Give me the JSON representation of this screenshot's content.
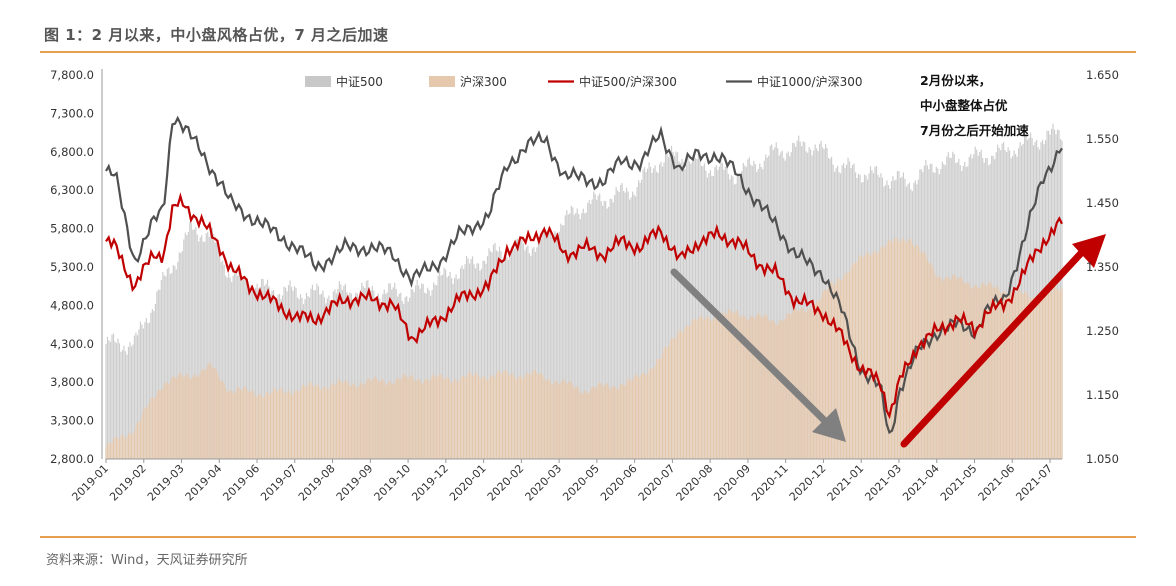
{
  "title": "图 1：2 月以来，中小盘风格占优，7 月之后加速",
  "source": "资料来源：Wind，天风证券研究所",
  "annotation": [
    "2月份以来，",
    "中小盘整体占优",
    "7月份之后开始加速"
  ],
  "colors": {
    "zz500_bar": "#c8c8c8",
    "hs300_bar": "#e6c8ad",
    "ratio500_line": "#c00000",
    "ratio1000_line": "#505050",
    "arrow_down": "#808080",
    "arrow_up": "#c00000",
    "rule": "#e8a050"
  },
  "chart_data": {
    "type": "bar+line",
    "x_ticks": [
      "2019-01",
      "2019-02",
      "2019-03",
      "2019-04",
      "2019-06",
      "2019-07",
      "2019-08",
      "2019-09",
      "2019-10",
      "2019-12",
      "2020-01",
      "2020-02",
      "2020-03",
      "2020-05",
      "2020-06",
      "2020-07",
      "2020-08",
      "2020-09",
      "2020-11",
      "2020-12",
      "2021-01",
      "2021-03",
      "2021-04",
      "2021-05",
      "2021-06",
      "2021-07"
    ],
    "y_left": {
      "min": 2800,
      "max": 7800,
      "ticks": [
        "7,800.0",
        "7,300.0",
        "6,800.0",
        "6,300.0",
        "5,800.0",
        "5,300.0",
        "4,800.0",
        "4,300.0",
        "3,800.0",
        "3,300.0",
        "2,800.0"
      ]
    },
    "y_right": {
      "min": 1.05,
      "max": 1.65,
      "ticks": [
        "1.650",
        "1.550",
        "1.450",
        "1.350",
        "1.250",
        "1.150",
        "1.050"
      ]
    },
    "series": [
      {
        "name": "中证500",
        "type": "bar",
        "axis": "left",
        "keypoints": [
          [
            0,
            4300
          ],
          [
            0.03,
            4300
          ],
          [
            0.06,
            5100
          ],
          [
            0.09,
            5800
          ],
          [
            0.11,
            5700
          ],
          [
            0.13,
            5200
          ],
          [
            0.17,
            5000
          ],
          [
            0.22,
            4950
          ],
          [
            0.27,
            5000
          ],
          [
            0.32,
            4950
          ],
          [
            0.36,
            5200
          ],
          [
            0.41,
            5500
          ],
          [
            0.45,
            5600
          ],
          [
            0.5,
            6100
          ],
          [
            0.55,
            6300
          ],
          [
            0.58,
            6700
          ],
          [
            0.6,
            6750
          ],
          [
            0.63,
            6600
          ],
          [
            0.66,
            6500
          ],
          [
            0.7,
            6800
          ],
          [
            0.74,
            6900
          ],
          [
            0.77,
            6600
          ],
          [
            0.8,
            6500
          ],
          [
            0.84,
            6400
          ],
          [
            0.87,
            6650
          ],
          [
            0.9,
            6700
          ],
          [
            0.94,
            6800
          ],
          [
            0.97,
            6950
          ],
          [
            1,
            7050
          ]
        ]
      },
      {
        "name": "沪深300",
        "type": "bar",
        "axis": "left",
        "keypoints": [
          [
            0,
            2950
          ],
          [
            0.03,
            3200
          ],
          [
            0.06,
            3800
          ],
          [
            0.09,
            3900
          ],
          [
            0.11,
            4000
          ],
          [
            0.13,
            3700
          ],
          [
            0.17,
            3650
          ],
          [
            0.22,
            3750
          ],
          [
            0.27,
            3800
          ],
          [
            0.32,
            3850
          ],
          [
            0.36,
            3850
          ],
          [
            0.41,
            3900
          ],
          [
            0.45,
            3900
          ],
          [
            0.5,
            3700
          ],
          [
            0.55,
            3800
          ],
          [
            0.58,
            4100
          ],
          [
            0.6,
            4500
          ],
          [
            0.63,
            4650
          ],
          [
            0.66,
            4700
          ],
          [
            0.7,
            4600
          ],
          [
            0.74,
            4800
          ],
          [
            0.77,
            5200
          ],
          [
            0.8,
            5500
          ],
          [
            0.84,
            5700
          ],
          [
            0.87,
            5200
          ],
          [
            0.9,
            5100
          ],
          [
            0.94,
            5000
          ],
          [
            0.97,
            4900
          ],
          [
            1,
            5000
          ]
        ]
      },
      {
        "name": "中证500/沪深300",
        "type": "line",
        "axis": "right",
        "keypoints": [
          [
            0,
            1.39
          ],
          [
            0.01,
            1.38
          ],
          [
            0.03,
            1.32
          ],
          [
            0.05,
            1.37
          ],
          [
            0.06,
            1.37
          ],
          [
            0.07,
            1.44
          ],
          [
            0.08,
            1.45
          ],
          [
            0.1,
            1.42
          ],
          [
            0.12,
            1.38
          ],
          [
            0.13,
            1.35
          ],
          [
            0.15,
            1.32
          ],
          [
            0.17,
            1.3
          ],
          [
            0.2,
            1.27
          ],
          [
            0.22,
            1.27
          ],
          [
            0.25,
            1.3
          ],
          [
            0.28,
            1.3
          ],
          [
            0.3,
            1.29
          ],
          [
            0.32,
            1.24
          ],
          [
            0.35,
            1.27
          ],
          [
            0.37,
            1.3
          ],
          [
            0.4,
            1.32
          ],
          [
            0.42,
            1.38
          ],
          [
            0.44,
            1.39
          ],
          [
            0.46,
            1.41
          ],
          [
            0.48,
            1.37
          ],
          [
            0.5,
            1.38
          ],
          [
            0.52,
            1.37
          ],
          [
            0.54,
            1.39
          ],
          [
            0.56,
            1.38
          ],
          [
            0.58,
            1.41
          ],
          [
            0.6,
            1.36
          ],
          [
            0.62,
            1.39
          ],
          [
            0.64,
            1.4
          ],
          [
            0.66,
            1.39
          ],
          [
            0.68,
            1.36
          ],
          [
            0.7,
            1.34
          ],
          [
            0.72,
            1.3
          ],
          [
            0.75,
            1.28
          ],
          [
            0.77,
            1.24
          ],
          [
            0.79,
            1.19
          ],
          [
            0.81,
            1.17
          ],
          [
            0.82,
            1.12
          ],
          [
            0.83,
            1.17
          ],
          [
            0.85,
            1.23
          ],
          [
            0.87,
            1.25
          ],
          [
            0.89,
            1.27
          ],
          [
            0.91,
            1.25
          ],
          [
            0.92,
            1.28
          ],
          [
            0.94,
            1.29
          ],
          [
            0.96,
            1.34
          ],
          [
            0.98,
            1.39
          ],
          [
            1,
            1.42
          ]
        ]
      },
      {
        "name": "中证1000/沪深300",
        "type": "line",
        "axis": "right",
        "keypoints": [
          [
            0,
            1.5
          ],
          [
            0.01,
            1.49
          ],
          [
            0.03,
            1.36
          ],
          [
            0.05,
            1.42
          ],
          [
            0.06,
            1.44
          ],
          [
            0.07,
            1.59
          ],
          [
            0.08,
            1.57
          ],
          [
            0.1,
            1.53
          ],
          [
            0.12,
            1.48
          ],
          [
            0.13,
            1.45
          ],
          [
            0.15,
            1.43
          ],
          [
            0.17,
            1.41
          ],
          [
            0.2,
            1.38
          ],
          [
            0.22,
            1.35
          ],
          [
            0.25,
            1.38
          ],
          [
            0.28,
            1.38
          ],
          [
            0.3,
            1.37
          ],
          [
            0.32,
            1.33
          ],
          [
            0.35,
            1.36
          ],
          [
            0.37,
            1.4
          ],
          [
            0.4,
            1.43
          ],
          [
            0.42,
            1.51
          ],
          [
            0.44,
            1.54
          ],
          [
            0.46,
            1.55
          ],
          [
            0.48,
            1.49
          ],
          [
            0.5,
            1.49
          ],
          [
            0.52,
            1.48
          ],
          [
            0.54,
            1.52
          ],
          [
            0.56,
            1.51
          ],
          [
            0.58,
            1.56
          ],
          [
            0.6,
            1.5
          ],
          [
            0.62,
            1.53
          ],
          [
            0.64,
            1.52
          ],
          [
            0.66,
            1.5
          ],
          [
            0.68,
            1.45
          ],
          [
            0.7,
            1.42
          ],
          [
            0.72,
            1.37
          ],
          [
            0.75,
            1.34
          ],
          [
            0.77,
            1.28
          ],
          [
            0.79,
            1.19
          ],
          [
            0.81,
            1.16
          ],
          [
            0.82,
            1.08
          ],
          [
            0.83,
            1.16
          ],
          [
            0.85,
            1.22
          ],
          [
            0.87,
            1.25
          ],
          [
            0.89,
            1.26
          ],
          [
            0.91,
            1.25
          ],
          [
            0.92,
            1.28
          ],
          [
            0.94,
            1.3
          ],
          [
            0.96,
            1.39
          ],
          [
            0.98,
            1.49
          ],
          [
            1,
            1.54
          ]
        ]
      }
    ]
  }
}
